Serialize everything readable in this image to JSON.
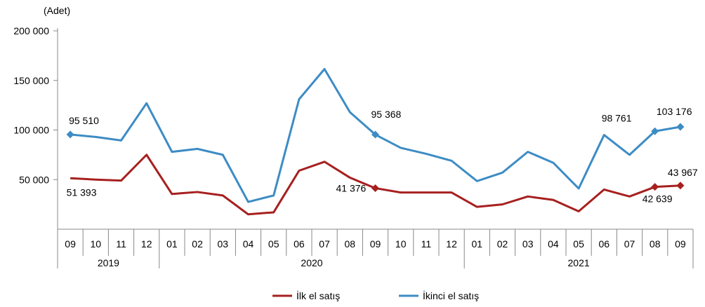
{
  "chart_data": {
    "type": "line",
    "ylabel": "(Adet)",
    "ylim": [
      0,
      200000
    ],
    "yticks": [
      50000,
      100000,
      150000,
      200000
    ],
    "ytick_labels": [
      "50 000",
      "100 000",
      "150 000",
      "200 000"
    ],
    "categories": [
      "09",
      "10",
      "11",
      "12",
      "01",
      "02",
      "03",
      "04",
      "05",
      "06",
      "07",
      "08",
      "09",
      "10",
      "11",
      "12",
      "01",
      "02",
      "03",
      "04",
      "05",
      "06",
      "07",
      "08",
      "09"
    ],
    "years": [
      {
        "label": "2019",
        "start": 0,
        "end": 3
      },
      {
        "label": "2020",
        "start": 4,
        "end": 15
      },
      {
        "label": "2021",
        "start": 16,
        "end": 24
      }
    ],
    "series": [
      {
        "name": "İlk el satış",
        "color": "#a6201f",
        "values": [
          51393,
          50000,
          49000,
          75000,
          35500,
          37500,
          34000,
          15000,
          17000,
          59000,
          68000,
          52000,
          41376,
          37000,
          37000,
          37000,
          22500,
          25000,
          33000,
          29500,
          18000,
          40000,
          33000,
          42639,
          43967
        ],
        "markers": [
          12,
          23,
          24
        ],
        "labels": [
          {
            "index": 0,
            "text": "51 393"
          },
          {
            "index": 12,
            "text": "41 376"
          },
          {
            "index": 23,
            "text": "42 639"
          },
          {
            "index": 24,
            "text": "43 967"
          }
        ]
      },
      {
        "name": "İkinci el satış",
        "color": "#3d8cc4",
        "values": [
          95510,
          93000,
          89500,
          127000,
          78000,
          81000,
          75000,
          27500,
          34000,
          131000,
          161500,
          118000,
          95368,
          82000,
          76000,
          69000,
          48500,
          57000,
          78000,
          67000,
          41000,
          95000,
          75000,
          98761,
          103176
        ],
        "markers": [
          0,
          12,
          23,
          24
        ],
        "labels": [
          {
            "index": 0,
            "text": "95 510"
          },
          {
            "index": 12,
            "text": "95 368"
          },
          {
            "index": 23,
            "text": "98 761"
          },
          {
            "index": 24,
            "text": "103 176"
          }
        ]
      }
    ],
    "legend": "bottom"
  }
}
